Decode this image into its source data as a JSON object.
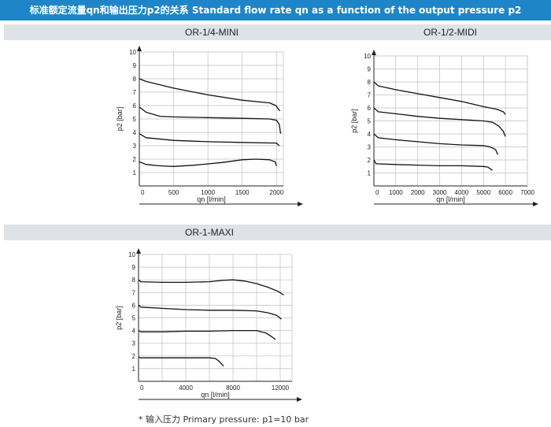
{
  "header": {
    "title": "标准额定流量qn和输出压力p2的关系 Standard flow rate qn as a function of the output pressure p2"
  },
  "footnote": "* 输入压力 Primary pressure: p1=10 bar",
  "chart_data": [
    {
      "type": "line",
      "title": "OR-1/4-MINI",
      "xlabel": "qn [l/min]",
      "ylabel": "p2 [bar]",
      "xlim": [
        0,
        2100
      ],
      "ylim": [
        0,
        10
      ],
      "xticks": [
        500,
        1000,
        1500,
        2000
      ],
      "xtick_labels": [
        "500",
        "1000",
        "1500",
        "2000"
      ],
      "yticks": [
        1,
        2,
        3,
        4,
        5,
        6,
        7,
        8,
        9,
        10
      ],
      "grid": true,
      "series": [
        {
          "x": [
            0,
            100,
            500,
            1000,
            1500,
            1900,
            1990,
            2050
          ],
          "y": [
            8.0,
            7.8,
            7.3,
            6.8,
            6.4,
            6.2,
            6.0,
            5.6
          ]
        },
        {
          "x": [
            0,
            100,
            300,
            500,
            1000,
            1500,
            1900,
            2000,
            2040,
            2060
          ],
          "y": [
            5.9,
            5.5,
            5.2,
            5.15,
            5.1,
            5.05,
            5.0,
            4.9,
            4.6,
            3.9
          ]
        },
        {
          "x": [
            0,
            100,
            500,
            1000,
            1500,
            2000,
            2040
          ],
          "y": [
            3.9,
            3.6,
            3.4,
            3.3,
            3.25,
            3.2,
            3.0
          ]
        },
        {
          "x": [
            0,
            100,
            300,
            500,
            800,
            1200,
            1500,
            1700,
            1900,
            1980,
            2000
          ],
          "y": [
            1.8,
            1.6,
            1.5,
            1.45,
            1.55,
            1.75,
            1.95,
            2.0,
            1.95,
            1.8,
            1.5
          ]
        }
      ]
    },
    {
      "type": "line",
      "title": "OR-1/2-MIDI",
      "xlabel": "qn [l/min]",
      "ylabel": "p2 [bar]",
      "xlim": [
        0,
        7000
      ],
      "ylim": [
        0,
        10
      ],
      "xticks": [
        1000,
        2000,
        3000,
        4000,
        5000,
        6000,
        7000
      ],
      "xtick_labels": [
        "1000",
        "2000",
        "3000",
        "4000",
        "5000",
        "6000",
        "7000"
      ],
      "yticks": [
        1,
        2,
        3,
        4,
        5,
        6,
        7,
        8,
        9,
        10
      ],
      "grid": true,
      "series": [
        {
          "x": [
            0,
            200,
            1000,
            2000,
            3000,
            4000,
            5000,
            5600,
            5900,
            6000
          ],
          "y": [
            8.0,
            7.7,
            7.4,
            7.1,
            6.8,
            6.5,
            6.1,
            5.9,
            5.7,
            5.5
          ]
        },
        {
          "x": [
            0,
            200,
            1000,
            2000,
            3000,
            4000,
            5000,
            5400,
            5700,
            5900,
            6000
          ],
          "y": [
            6.0,
            5.7,
            5.55,
            5.35,
            5.2,
            5.1,
            5.0,
            4.9,
            4.6,
            4.2,
            3.8
          ]
        },
        {
          "x": [
            0,
            200,
            1000,
            2000,
            3000,
            4000,
            5000,
            5300,
            5550,
            5650
          ],
          "y": [
            4.0,
            3.7,
            3.55,
            3.4,
            3.25,
            3.15,
            3.1,
            3.0,
            2.8,
            2.4
          ]
        },
        {
          "x": [
            0,
            100,
            1000,
            2000,
            3000,
            4000,
            5000,
            5200,
            5400
          ],
          "y": [
            2.0,
            1.7,
            1.65,
            1.6,
            1.55,
            1.55,
            1.5,
            1.45,
            1.2
          ]
        }
      ]
    },
    {
      "type": "line",
      "title": "OR-1-MAXI",
      "xlabel": "qn [l/min]",
      "ylabel": "p2 [bar]",
      "xlim": [
        0,
        13000
      ],
      "ylim": [
        0,
        10
      ],
      "xticks": [
        2000,
        4000,
        6000,
        8000,
        10000,
        12000
      ],
      "xtick_labels": [
        "",
        "4000",
        "",
        "8000",
        "",
        "12000"
      ],
      "yticks": [
        1,
        2,
        3,
        4,
        5,
        6,
        7,
        8,
        9,
        10
      ],
      "grid": true,
      "series": [
        {
          "x": [
            0,
            200,
            2000,
            4000,
            6000,
            7000,
            8000,
            9000,
            10000,
            11000,
            11800,
            12300
          ],
          "y": [
            8.0,
            7.85,
            7.8,
            7.8,
            7.85,
            7.95,
            8.0,
            7.9,
            7.7,
            7.4,
            7.1,
            6.8
          ]
        },
        {
          "x": [
            0,
            200,
            2000,
            4000,
            6000,
            8000,
            10000,
            11000,
            11700,
            12100
          ],
          "y": [
            6.0,
            5.85,
            5.75,
            5.65,
            5.6,
            5.6,
            5.55,
            5.4,
            5.2,
            4.9
          ]
        },
        {
          "x": [
            0,
            200,
            2000,
            4000,
            6000,
            8000,
            10000,
            10800,
            11300,
            11600
          ],
          "y": [
            4.0,
            3.9,
            3.9,
            3.95,
            3.95,
            4.0,
            4.0,
            3.8,
            3.5,
            3.3
          ]
        },
        {
          "x": [
            0,
            200,
            2000,
            4000,
            6000,
            6500,
            6800,
            7200
          ],
          "y": [
            1.9,
            1.85,
            1.85,
            1.85,
            1.85,
            1.8,
            1.6,
            1.2
          ]
        }
      ]
    }
  ]
}
